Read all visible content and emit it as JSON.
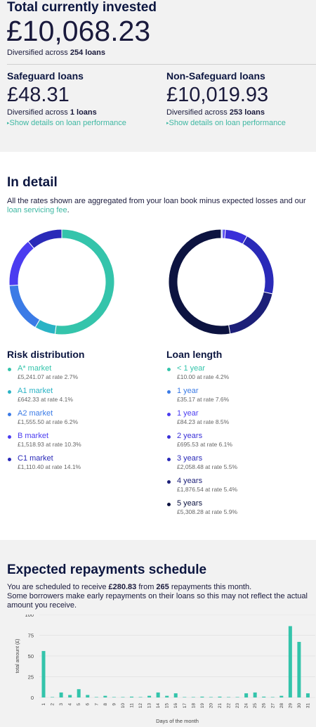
{
  "summary": {
    "title": "Total currently invested",
    "amount": "£10,068.23",
    "diversified_prefix": "Diversified across ",
    "diversified_count": "254 loans"
  },
  "safeguard": {
    "title": "Safeguard loans",
    "amount": "£48.31",
    "diversified_prefix": "Diversified across ",
    "diversified_count": "1 loans",
    "link": "Show details on loan performance"
  },
  "nonsafeguard": {
    "title": "Non-Safeguard loans",
    "amount": "£10,019.93",
    "diversified_prefix": "Diversified across ",
    "diversified_count": "253 loans",
    "link": "Show details on loan performance"
  },
  "detail": {
    "title": "In detail",
    "intro": "All the rates shown are aggregated from your loan book minus expected losses and our ",
    "intro_link": "loan servicing fee",
    "intro_end": "."
  },
  "risk": {
    "title": "Risk distribution",
    "items": [
      {
        "name": "A* market",
        "detail": "£5,241.07 at rate 2.7%",
        "value": 5241.07,
        "color": "#34c4ab"
      },
      {
        "name": "A1 market",
        "detail": "£642.33 at rate 4.1%",
        "value": 642.33,
        "color": "#2ab3c5"
      },
      {
        "name": "A2 market",
        "detail": "£1,555.50 at rate 6.2%",
        "value": 1555.5,
        "color": "#3b7be6"
      },
      {
        "name": "B market",
        "detail": "£1,518.93 at rate 10.3%",
        "value": 1518.93,
        "color": "#4b3cf0"
      },
      {
        "name": "C1 market",
        "detail": "£1,110.40 at rate 14.1%",
        "value": 1110.4,
        "color": "#2a2ab8"
      }
    ]
  },
  "length": {
    "title": "Loan length",
    "items": [
      {
        "name": "< 1 year",
        "detail": "£10.00 at rate 4.2%",
        "value": 10.0,
        "color": "#34c4ab"
      },
      {
        "name": "1 year",
        "detail": "£35.17 at rate 7.6%",
        "value": 35.17,
        "color": "#3b7be6"
      },
      {
        "name": "1 year",
        "detail": "£84.23 at rate 8.5%",
        "value": 84.23,
        "color": "#4b3cf0"
      },
      {
        "name": "2 years",
        "detail": "£695.53 at rate 6.1%",
        "value": 695.53,
        "color": "#3a30d8"
      },
      {
        "name": "3 years",
        "detail": "£2,058.48 at rate 5.5%",
        "value": 2058.48,
        "color": "#2a2ab8"
      },
      {
        "name": "4 years",
        "detail": "£1,876.54 at rate 5.4%",
        "value": 1876.54,
        "color": "#1c1f78"
      },
      {
        "name": "5 years",
        "detail": "£5,308.28 at rate 5.9%",
        "value": 5308.28,
        "color": "#0c1340"
      }
    ]
  },
  "schedule": {
    "title": "Expected repayments schedule",
    "line1_a": "You are scheduled to receive ",
    "line1_amount": "£280.83",
    "line1_b": " from ",
    "line1_count": "265",
    "line1_c": " repayments this month.",
    "line2": "Some borrowers make early repayments on their loans so this may not reflect the actual amount you receive."
  },
  "chart_data": {
    "type": "bar",
    "xlabel": "Days of the month",
    "ylabel": "total amount (£)",
    "ylim": [
      0,
      100
    ],
    "yticks": [
      "0",
      "25",
      "50",
      "75",
      "100"
    ],
    "categories": [
      "1",
      "2",
      "3",
      "4",
      "5",
      "6",
      "7",
      "8",
      "9",
      "10",
      "11",
      "12",
      "13",
      "14",
      "15",
      "16",
      "17",
      "18",
      "19",
      "20",
      "21",
      "22",
      "23",
      "24",
      "25",
      "26",
      "27",
      "28",
      "29",
      "30",
      "31"
    ],
    "values": [
      56,
      0.5,
      6,
      3,
      10,
      3,
      0.5,
      2,
      0.5,
      0.5,
      1,
      0.5,
      2,
      6,
      2,
      5,
      0.5,
      0.5,
      1,
      0.5,
      1,
      0.5,
      0.5,
      5,
      6,
      1,
      0.5,
      2,
      86,
      67,
      5
    ],
    "bar_color": "#34c4ab",
    "grid": true
  }
}
